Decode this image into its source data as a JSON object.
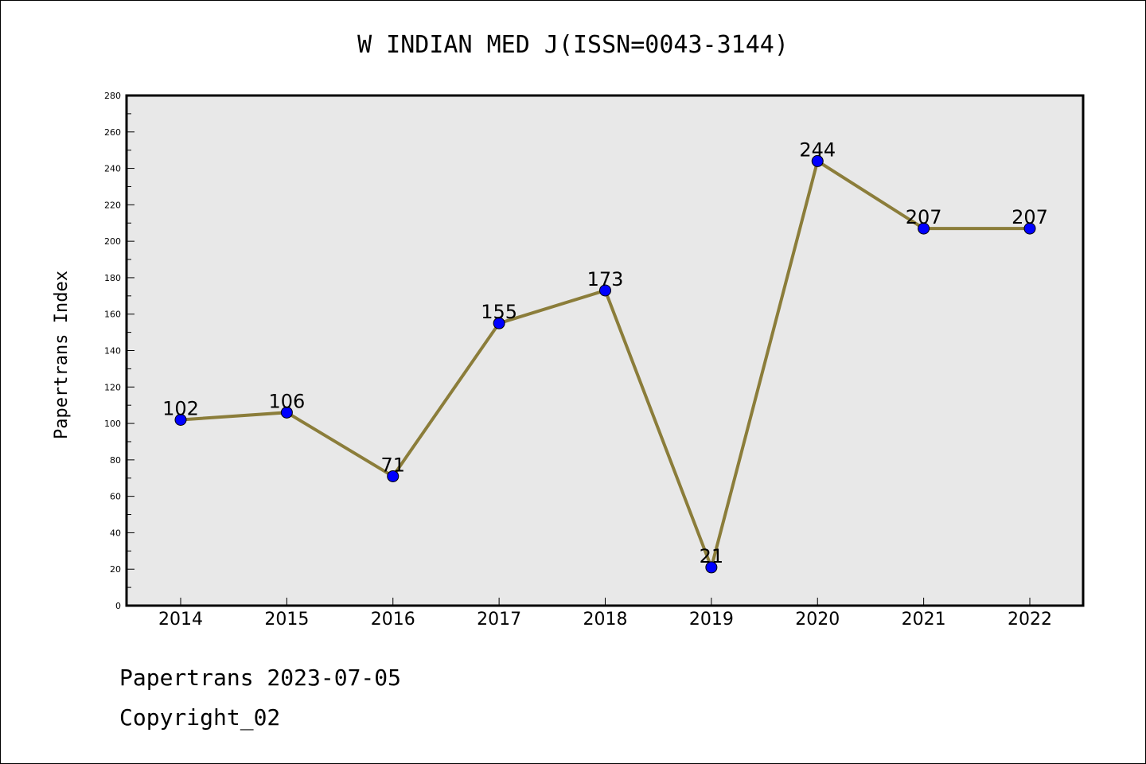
{
  "chart_data": {
    "type": "line",
    "title": "W INDIAN MED J(ISSN=0043-3144)",
    "xlabel": "",
    "ylabel": "Papertrans Index",
    "categories": [
      "2014",
      "2015",
      "2016",
      "2017",
      "2018",
      "2019",
      "2020",
      "2021",
      "2022"
    ],
    "series": [
      {
        "values": [
          102,
          106,
          71,
          155,
          173,
          21,
          244,
          207,
          207
        ]
      }
    ],
    "ylim": [
      0,
      280
    ],
    "yticks": [
      0,
      20,
      40,
      60,
      80,
      100,
      120,
      140,
      160,
      180,
      200,
      220,
      240,
      260,
      280
    ],
    "grid": false,
    "legend": "none",
    "colors": {
      "line": "#8B7D3A",
      "marker": "#0000FF",
      "plot_background": "#E8E8E8"
    }
  },
  "footer": {
    "date_line": "Papertrans 2023-07-05",
    "copyright": "Copyright_02"
  }
}
